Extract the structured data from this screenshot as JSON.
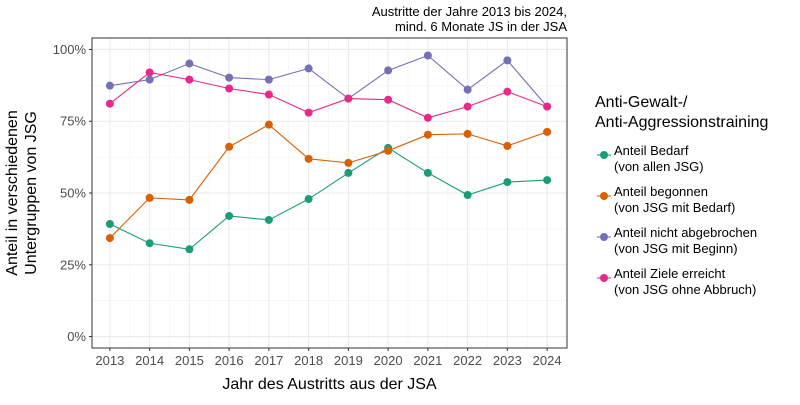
{
  "chart_data": {
    "type": "line",
    "title": "Austritte der Jahre 2013 bis 2024,",
    "subtitle": "mind. 6 Monate JS in der JSA",
    "xlabel": "Jahr des Austritts aus der JSA",
    "ylabel": [
      "Anteil in verschiedenen",
      "Untergruppen von JSG"
    ],
    "x": [
      2013,
      2014,
      2015,
      2016,
      2017,
      2018,
      2019,
      2020,
      2021,
      2022,
      2023,
      2024
    ],
    "xlim": [
      2012.55,
      2024.5
    ],
    "ylim": [
      -4,
      104
    ],
    "yticks": [
      0,
      25,
      50,
      75,
      100
    ],
    "ytick_labels": [
      "0%",
      "25%",
      "50%",
      "75%",
      "100%"
    ],
    "grid": true,
    "legend": {
      "title": [
        "Anti-Gewalt-/",
        "Anti-Aggressionstraining"
      ],
      "placement": "right"
    },
    "series": [
      {
        "name": "Anteil Bedarf",
        "name2": "(von allen JSG)",
        "color": "#1b9e77",
        "values": [
          39.2,
          32.5,
          30.4,
          42.0,
          40.6,
          47.9,
          57.0,
          65.7,
          57.0,
          49.3,
          53.8,
          54.5
        ]
      },
      {
        "name": "Anteil begonnen",
        "name2": "(von JSG mit Bedarf)",
        "color": "#d95f02",
        "values": [
          34.3,
          48.3,
          47.6,
          66.1,
          73.8,
          61.9,
          60.5,
          64.7,
          70.3,
          70.6,
          66.4,
          71.3
        ]
      },
      {
        "name": "Anteil nicht abgebrochen",
        "name2": "(von JSG mit Beginn)",
        "color": "#7570b3",
        "values": [
          87.4,
          89.5,
          95.1,
          90.2,
          89.5,
          93.4,
          82.9,
          92.7,
          97.9,
          86.0,
          96.2,
          80.1
        ]
      },
      {
        "name": "Anteil Ziele erreicht",
        "name2": "(von JSG ohne Abbruch)",
        "color": "#e7298a",
        "values": [
          81.1,
          92.0,
          89.5,
          86.4,
          84.3,
          78.0,
          82.9,
          82.5,
          76.2,
          80.1,
          85.3,
          80.1
        ]
      }
    ]
  }
}
